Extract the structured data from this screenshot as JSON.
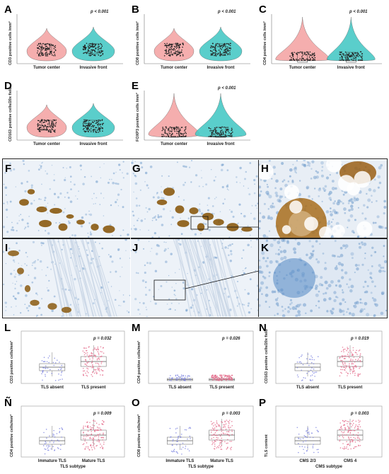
{
  "top_panels": [
    {
      "id": "A",
      "ylabel": "CD3 positive cells /mm²",
      "categories": [
        "Tumor center",
        "Invasive front"
      ],
      "p": "p < 0.001"
    },
    {
      "id": "B",
      "ylabel": "CD8 positive cells /mm²",
      "categories": [
        "Tumor center",
        "Invasive front"
      ],
      "p": "p < 0.001"
    },
    {
      "id": "C",
      "ylabel": "CD4 positive cells /mm²",
      "categories": [
        "Tumor center",
        "Invasive front"
      ],
      "p": "p < 0.001"
    },
    {
      "id": "D",
      "ylabel": "CD163 positive cells/20x field",
      "categories": [
        "Tumor center",
        "Invasive front"
      ],
      "p": ""
    },
    {
      "id": "E",
      "ylabel": "FOXP3 positive cells /mm²",
      "categories": [
        "Tumor center",
        "Invasive front"
      ],
      "p": "p < 0.001"
    }
  ],
  "image_labels": [
    "F",
    "G",
    "H",
    "I",
    "J",
    "K"
  ],
  "bottom_panels": [
    {
      "id": "L",
      "ylabel": "CD3 positive cells/mm²",
      "categories": [
        "TLS absent",
        "TLS present"
      ],
      "p": "p = 0.032",
      "subtitle": ""
    },
    {
      "id": "M",
      "ylabel": "CD4 positive cells/mm²",
      "categories": [
        "TLS absent",
        "TLS present"
      ],
      "p": "p = 0.026",
      "subtitle": ""
    },
    {
      "id": "N",
      "ylabel": "CD163 positive cells/20x field",
      "categories": [
        "TLS absent",
        "TLS present"
      ],
      "p": "p = 0.019",
      "subtitle": ""
    },
    {
      "id": "Ñ",
      "ylabel": "CD4 positive cells/mm²",
      "categories": [
        "Immature TLS",
        "Mature TLS"
      ],
      "p": "p = 0.009",
      "subtitle": "TLS subtype"
    },
    {
      "id": "O",
      "ylabel": "CD8 positive cells/mm²",
      "categories": [
        "Immature TLS",
        "Mature TLS"
      ],
      "p": "p = 0.003",
      "subtitle": "TLS subtype"
    },
    {
      "id": "P",
      "ylabel": "TLS content",
      "categories": [
        "CMS 2/3",
        "CMS 4"
      ],
      "p": "p = 0.003",
      "subtitle": "CMS subtype"
    }
  ],
  "colors": {
    "pink": "#f4a6a6",
    "teal": "#49c9c6",
    "box_red": "#e36a8a",
    "box_blue": "#7b82e0",
    "stain": "#8a5a10"
  }
}
